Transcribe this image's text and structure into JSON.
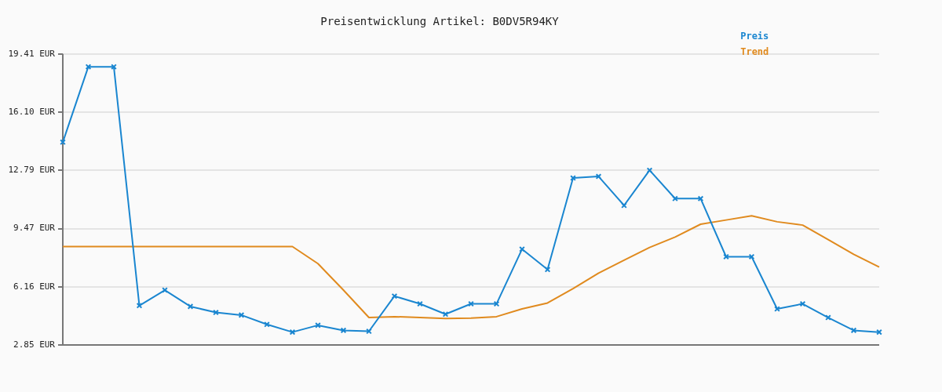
{
  "chart_data": {
    "type": "line",
    "title": "Preisentwicklung Artikel: B0DV5R94KY",
    "categories": [
      null,
      null,
      null,
      null,
      null,
      null,
      null,
      null,
      null,
      null,
      null,
      null,
      null,
      null,
      null,
      null,
      null,
      null,
      null,
      null,
      null,
      null,
      null,
      null,
      null,
      null,
      null,
      null,
      null,
      null,
      null,
      null,
      null
    ],
    "series": [
      {
        "name": "Preis",
        "color": "#1a86d0",
        "marker": "cross",
        "values": [
          14.39,
          18.68,
          18.68,
          5.09,
          5.97,
          5.04,
          4.7,
          4.55,
          4.02,
          3.58,
          3.97,
          3.68,
          3.63,
          5.63,
          5.19,
          4.6,
          5.19,
          5.19,
          8.3,
          7.14,
          12.35,
          12.44,
          10.79,
          12.79,
          11.18,
          11.18,
          7.87,
          7.87,
          4.9,
          5.19,
          4.41,
          3.68,
          3.58
        ]
      },
      {
        "name": "Trend",
        "color": "#e08a1e",
        "marker": "none",
        "values": [
          8.45,
          8.45,
          8.45,
          8.45,
          8.45,
          8.45,
          8.45,
          8.45,
          8.45,
          8.45,
          7.48,
          5.97,
          4.41,
          4.46,
          4.41,
          4.36,
          4.38,
          4.46,
          4.9,
          5.24,
          6.06,
          6.94,
          7.67,
          8.4,
          8.99,
          9.72,
          9.96,
          10.2,
          9.86,
          9.67,
          8.84,
          8.01,
          7.28
        ]
      }
    ],
    "ylim": [
      2.85,
      19.41
    ],
    "yticks": [
      {
        "value": 2.85,
        "label": "2.85 EUR"
      },
      {
        "value": 6.16,
        "label": "6.16 EUR"
      },
      {
        "value": 9.47,
        "label": "9.47 EUR"
      },
      {
        "value": 12.79,
        "label": "12.79 EUR"
      },
      {
        "value": 16.1,
        "label": "16.10 EUR"
      },
      {
        "value": 19.41,
        "label": "19.41 EUR"
      }
    ],
    "grid": "y",
    "legend": "top right",
    "tick_labels": "y",
    "line_style": "solid"
  }
}
